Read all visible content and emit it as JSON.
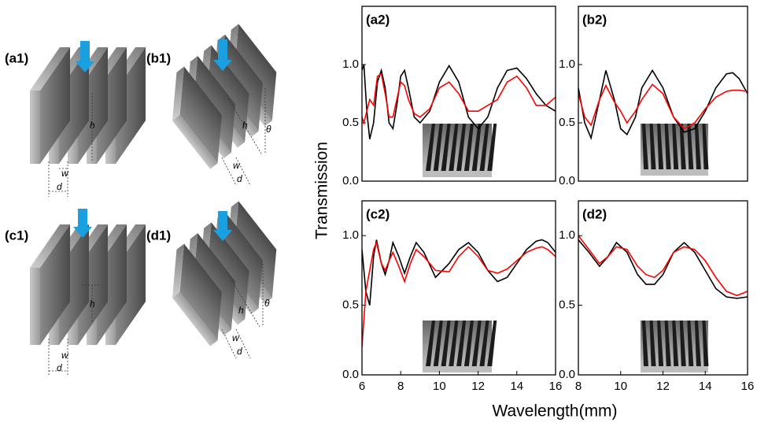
{
  "figure": {
    "ylabel": "Transmission",
    "xlabel": "Wavelength(mm)"
  },
  "schematics": [
    {
      "label": "(a1)",
      "h": "h",
      "w": "w",
      "d": "d"
    },
    {
      "label": "(b1)",
      "h": "h",
      "theta": "θ",
      "w": "w",
      "d": "d"
    },
    {
      "label": "(c1)",
      "h": "h",
      "w": "w",
      "d": "d"
    },
    {
      "label": "(d1)",
      "h": "h",
      "theta": "θ",
      "w": "w",
      "d": "d"
    }
  ],
  "chart_data": [
    {
      "type": "line",
      "title": "(a2)",
      "x": [
        6,
        6.1,
        6.25,
        6.4,
        6.6,
        6.8,
        7.0,
        7.2,
        7.4,
        7.6,
        7.8,
        8.0,
        8.2,
        8.4,
        8.7,
        9.0,
        9.5,
        10.0,
        10.5,
        11.0,
        11.5,
        12.0,
        12.5,
        13.0,
        13.5,
        14.0,
        14.5,
        15.0,
        15.5,
        16.0
      ],
      "xlim": [
        6,
        16
      ],
      "ylim": [
        0,
        1.5
      ],
      "yticks": [
        {
          "value": 0,
          "label": "0.0"
        },
        {
          "value": 0.5,
          "label": "0.5"
        },
        {
          "value": 1,
          "label": "1.0"
        }
      ],
      "series": [
        {
          "color": "#000000",
          "values": [
            0.95,
            1.0,
            0.6,
            0.36,
            0.5,
            0.85,
            0.95,
            0.8,
            0.5,
            0.45,
            0.65,
            0.9,
            0.95,
            0.8,
            0.55,
            0.5,
            0.6,
            0.85,
            0.99,
            0.85,
            0.55,
            0.45,
            0.55,
            0.8,
            0.95,
            0.97,
            0.88,
            0.75,
            0.65,
            0.6
          ]
        },
        {
          "color": "#ff0000",
          "values": [
            0.55,
            0.5,
            0.6,
            0.7,
            0.65,
            0.9,
            0.92,
            0.75,
            0.55,
            0.55,
            0.7,
            0.85,
            0.82,
            0.7,
            0.58,
            0.55,
            0.62,
            0.8,
            0.85,
            0.75,
            0.6,
            0.6,
            0.65,
            0.7,
            0.85,
            0.9,
            0.8,
            0.65,
            0.65,
            0.72
          ]
        }
      ]
    },
    {
      "type": "line",
      "title": "(b2)",
      "x": [
        8,
        8.3,
        8.6,
        9.0,
        9.3,
        9.7,
        10.0,
        10.3,
        10.7,
        11.0,
        11.5,
        12.0,
        12.5,
        13.0,
        13.5,
        14.0,
        14.5,
        15.0,
        15.3,
        15.6,
        16
      ],
      "xlim": [
        8,
        16
      ],
      "ylim": [
        0,
        1.5
      ],
      "yticks": [
        {
          "value": 0,
          "label": "0.0"
        },
        {
          "value": 0.5,
          "label": "0.5"
        },
        {
          "value": 1,
          "label": "1.0"
        }
      ],
      "series": [
        {
          "color": "#000000",
          "values": [
            0.8,
            0.5,
            0.37,
            0.7,
            0.95,
            0.7,
            0.45,
            0.4,
            0.55,
            0.8,
            0.95,
            0.8,
            0.55,
            0.42,
            0.45,
            0.6,
            0.8,
            0.92,
            0.93,
            0.88,
            0.75
          ]
        },
        {
          "color": "#ff0000",
          "values": [
            0.75,
            0.55,
            0.48,
            0.7,
            0.82,
            0.68,
            0.6,
            0.5,
            0.6,
            0.7,
            0.83,
            0.75,
            0.55,
            0.45,
            0.5,
            0.62,
            0.72,
            0.77,
            0.78,
            0.78,
            0.77
          ]
        }
      ]
    },
    {
      "type": "line",
      "title": "(c2)",
      "x": [
        6,
        6.2,
        6.4,
        6.6,
        6.75,
        7.0,
        7.2,
        7.4,
        7.6,
        7.9,
        8.2,
        8.5,
        8.8,
        9.2,
        9.8,
        10.5,
        11.0,
        11.5,
        12.0,
        12.5,
        13.0,
        13.5,
        14.0,
        14.5,
        15.0,
        15.3,
        15.6,
        16
      ],
      "xlim": [
        6,
        16
      ],
      "xticks": [
        6,
        8,
        10,
        12,
        14,
        16
      ],
      "ylim": [
        0,
        1.25
      ],
      "yticks": [
        {
          "value": 0,
          "label": "0.0"
        },
        {
          "value": 0.5,
          "label": "0.5"
        },
        {
          "value": 1,
          "label": "1.0"
        }
      ],
      "series": [
        {
          "color": "#000000",
          "values": [
            0.9,
            0.6,
            0.5,
            0.85,
            0.97,
            0.8,
            0.72,
            0.82,
            0.95,
            0.85,
            0.73,
            0.85,
            0.95,
            0.88,
            0.7,
            0.8,
            0.9,
            0.95,
            0.88,
            0.75,
            0.67,
            0.7,
            0.8,
            0.9,
            0.96,
            0.97,
            0.95,
            0.88
          ]
        },
        {
          "color": "#ff0000",
          "values": [
            0.2,
            0.6,
            0.75,
            0.9,
            0.95,
            0.8,
            0.75,
            0.82,
            0.88,
            0.78,
            0.67,
            0.8,
            0.9,
            0.85,
            0.75,
            0.74,
            0.85,
            0.92,
            0.85,
            0.75,
            0.73,
            0.76,
            0.82,
            0.88,
            0.91,
            0.92,
            0.9,
            0.85
          ]
        }
      ]
    },
    {
      "type": "line",
      "title": "(d2)",
      "x": [
        8,
        8.5,
        9.0,
        9.4,
        9.8,
        10.3,
        10.8,
        11.2,
        11.6,
        12.0,
        12.5,
        13.0,
        13.5,
        14.0,
        14.5,
        15.0,
        15.5,
        16
      ],
      "xlim": [
        8,
        16
      ],
      "xticks": [
        8,
        10,
        12,
        14,
        16
      ],
      "ylim": [
        0,
        1.25
      ],
      "yticks": [
        {
          "value": 0,
          "label": "0.0"
        },
        {
          "value": 0.5,
          "label": "0.5"
        },
        {
          "value": 1,
          "label": "1.0"
        }
      ],
      "series": [
        {
          "color": "#000000",
          "values": [
            0.97,
            0.88,
            0.78,
            0.85,
            0.95,
            0.88,
            0.72,
            0.65,
            0.65,
            0.72,
            0.88,
            0.95,
            0.88,
            0.75,
            0.62,
            0.56,
            0.55,
            0.56
          ]
        },
        {
          "color": "#ff0000",
          "values": [
            1.0,
            0.9,
            0.8,
            0.85,
            0.92,
            0.9,
            0.78,
            0.72,
            0.7,
            0.75,
            0.88,
            0.92,
            0.9,
            0.82,
            0.7,
            0.6,
            0.57,
            0.6
          ]
        }
      ]
    }
  ]
}
